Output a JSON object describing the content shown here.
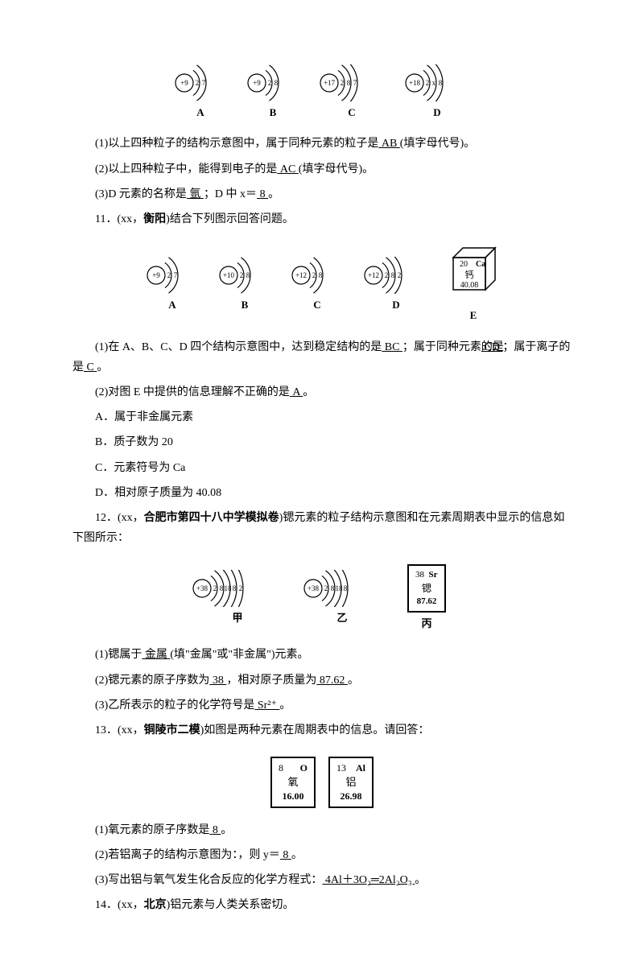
{
  "sec10": {
    "atoms": [
      {
        "nucleus": "+9",
        "shells": [
          "2",
          "7"
        ],
        "label": "A"
      },
      {
        "nucleus": "+9",
        "shells": [
          "2",
          "8"
        ],
        "label": "B"
      },
      {
        "nucleus": "+17",
        "shells": [
          "2",
          "8",
          "7"
        ],
        "label": "C"
      },
      {
        "nucleus": "+18",
        "shells": [
          "2",
          "x",
          "8"
        ],
        "label": "D"
      }
    ],
    "q1_pre": "(1)以上四种粒子的结构示意图中，属于同种元素的粒子是",
    "q1_ans": " AB ",
    "q1_post": "(填字母代号)。",
    "q2_pre": "(2)以上四种粒子中，能得到电子的是",
    "q2_ans": " AC ",
    "q2_post": "(填字母代号)。",
    "q3_pre": "(3)D 元素的名称是",
    "q3_ans1": " 氩 ",
    "q3_mid": "；D 中 x＝",
    "q3_ans2": " 8 ",
    "q3_end": "。"
  },
  "sec11": {
    "title_pre": "11．(xx，",
    "title_bold": "衡阳",
    "title_post": ")结合下列图示回答问题。",
    "atoms": [
      {
        "nucleus": "+9",
        "shells": [
          "2",
          "7"
        ],
        "label": "A"
      },
      {
        "nucleus": "+10",
        "shells": [
          "2",
          "8"
        ],
        "label": "B"
      },
      {
        "nucleus": "+12",
        "shells": [
          "2",
          "8"
        ],
        "label": "C"
      },
      {
        "nucleus": "+12",
        "shells": [
          "2",
          "8",
          "2"
        ],
        "label": "D"
      }
    ],
    "cube": {
      "top_left": "20",
      "top_right": "Ca",
      "mid": "钙",
      "bot": "40.08",
      "label": "E"
    },
    "q1_pre": "(1)在 A、B、C、D 四个结构示意图中，达到稳定结构的是",
    "q1_a1": " BC ",
    "q1_mid1": "；属于同种元素的是",
    "q1_a2": " CD ",
    "q1_mid2": "；属于离子的是",
    "q1_a3": " C ",
    "q1_end": "。",
    "q2_pre": "(2)对图 E 中提供的信息理解不正确的是",
    "q2_ans": " A ",
    "q2_end": "。",
    "optA": "A．属于非金属元素",
    "optB": "B．质子数为 20",
    "optC": "C．元素符号为 Ca",
    "optD": "D．相对原子质量为 40.08"
  },
  "sec12": {
    "title_pre": "12．(xx，",
    "title_bold": "合肥市第四十八中学模拟卷",
    "title_post": ")锶元素的粒子结构示意图和在元素周期表中显示的信息如下图所示：",
    "atoms": [
      {
        "nucleus": "+38",
        "shells": [
          "2",
          "8",
          "18",
          "8",
          "2"
        ],
        "label": "甲"
      },
      {
        "nucleus": "+38",
        "shells": [
          "2",
          "8",
          "18",
          "8"
        ],
        "label": "乙"
      }
    ],
    "box": {
      "line1_l": "38",
      "line1_r": "Sr",
      "line2": "锶",
      "line3": "87.62",
      "label": "丙"
    },
    "q1_pre": "(1)锶属于",
    "q1_ans": " 金属 ",
    "q1_post": "(填\"金属\"或\"非金属\")元素。",
    "q2_pre": "(2)锶元素的原子序数为",
    "q2_a1": " 38 ",
    "q2_mid": "，相对原子质量为",
    "q2_a2": " 87.62 ",
    "q2_end": "。",
    "q3_pre": "(3)乙所表示的粒子的化学符号是",
    "q3_ans": " Sr²⁺ ",
    "q3_end": "。"
  },
  "sec13": {
    "title_pre": "13．(xx，",
    "title_bold": "铜陵市二模",
    "title_post": ")如图是两种元素在周期表中的信息。请回答：",
    "box1": {
      "tl": "8",
      "tr": "O",
      "mid": "氧",
      "bot": "16.00"
    },
    "box2": {
      "tl": "13",
      "tr": "Al",
      "mid": "铝",
      "bot": "26.98"
    },
    "q1_pre": "(1)氧元素的原子序数是",
    "q1_ans": " 8 ",
    "q1_end": "。",
    "q2_pre": "(2)若铝离子的结构示意图为：，则 y＝",
    "q2_ans": " 8 ",
    "q2_end": "。",
    "q3_pre": "(3)写出铝与氧气发生化合反应的化学方程式：",
    "q3_ans": " 4Al＋3O₂═2Al₂O₃ ",
    "q3_end": "。"
  },
  "sec14": {
    "title_pre": "14．(xx，",
    "title_bold": "北京",
    "title_post": ")铝元素与人类关系密切。"
  },
  "svg": {
    "nucleus_r": 10,
    "shell_gap": 9,
    "stroke": "#000",
    "font": 10
  }
}
